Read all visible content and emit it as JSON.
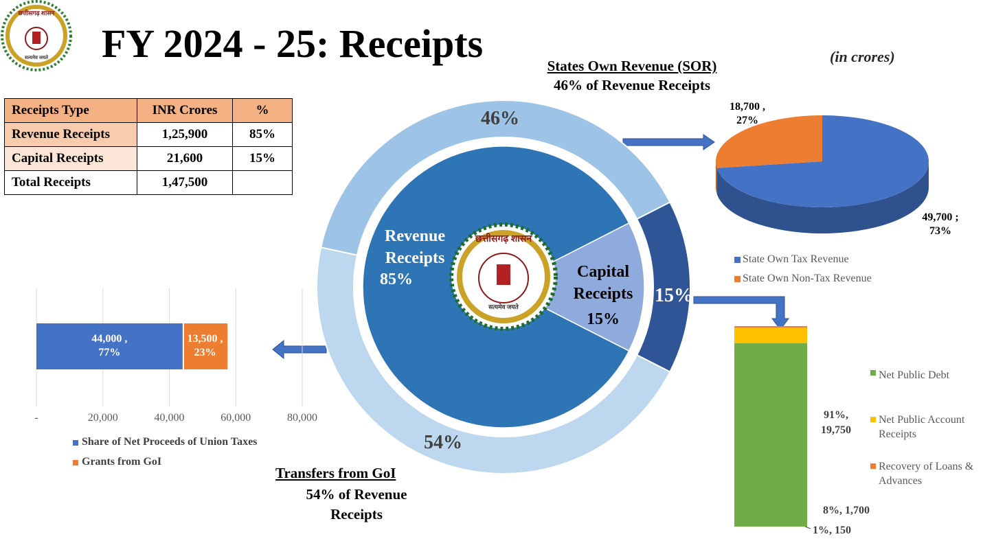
{
  "header": {
    "title": "FY 2024 - 25: Receipts",
    "unit_note": "(in crores)"
  },
  "emblem": {
    "name": "छत्तीसगढ़ शासन",
    "motto": "सत्यमेव जयते"
  },
  "table": {
    "columns": [
      "Receipts Type",
      "INR Crores",
      "%"
    ],
    "rows": [
      [
        "Revenue Receipts",
        "1,25,900",
        "85%"
      ],
      [
        "Capital Receipts",
        "21,600",
        "15%"
      ],
      [
        "Total Receipts",
        "1,47,500"
      ]
    ]
  },
  "annotations": {
    "sor_title": "States Own Revenue (SOR)",
    "sor_note": "46% of Revenue Receipts",
    "goi_title": "Transfers from GoI",
    "goi_note": "54% of Revenue Receipts"
  },
  "chart_data": [
    {
      "type": "pie",
      "categories": [
        "Revenue Receipts",
        "Capital Receipts"
      ],
      "values": [
        85,
        15
      ],
      "value_labels": [
        "85%",
        "15%"
      ],
      "colors": [
        "#2e75b6",
        "#8faadc"
      ],
      "outer_color": "#2f5597"
    },
    {
      "type": "donut",
      "values": [
        46,
        54
      ],
      "value_labels": [
        "46%",
        "54%"
      ],
      "colors": [
        "#9dc3e6",
        "#bdd7ee"
      ]
    },
    {
      "type": "pie",
      "three_d": true,
      "categories": [
        "State Own Tax Revenue",
        "State Own Non-Tax Revenue"
      ],
      "values": [
        49700,
        18700
      ],
      "value_labels": [
        "49,700 ; 73%",
        "18,700 , 27%"
      ],
      "colors": [
        "#4472c4",
        "#ed7d31"
      ],
      "side_colors": [
        "#2f528f",
        "#c55a11"
      ],
      "legend": "bottom"
    },
    {
      "type": "bar",
      "orientation": "horizontal",
      "stacked": true,
      "grid": true,
      "categories": [
        null
      ],
      "series": [
        {
          "name": "Share of Net Proceeds of Union Taxes",
          "color": "#4472c4",
          "values": [
            44000
          ],
          "value_labels": [
            "44,000 , 77%"
          ]
        },
        {
          "name": "Grants from GoI",
          "color": "#ed7d31",
          "values": [
            13500
          ],
          "value_labels": [
            "13,500 , 23%"
          ]
        }
      ],
      "xlim": [
        0,
        80000
      ],
      "xticks": [
        {
          "value": 0,
          "label": "-"
        },
        {
          "value": 20000,
          "label": "20,000"
        },
        {
          "value": 40000,
          "label": "40,000"
        },
        {
          "value": 60000,
          "label": "60,000"
        },
        {
          "value": 80000,
          "label": "80,000"
        }
      ],
      "legend": "bottom"
    },
    {
      "type": "bar",
      "orientation": "vertical",
      "stacked": true,
      "categories": [
        null
      ],
      "series": [
        {
          "name": "Net Public Debt",
          "color": "#70ad47",
          "values": [
            19750
          ],
          "value_labels": [
            "91%, 19,750"
          ]
        },
        {
          "name": "Net Public Account Receipts",
          "color": "#ffc000",
          "values": [
            1700
          ],
          "value_labels": [
            "8%, 1,700"
          ]
        },
        {
          "name": "Recovery of Loans & Advances",
          "color": "#ed7d31",
          "values": [
            150
          ],
          "value_labels": [
            "1%, 150"
          ]
        }
      ],
      "legend": "right"
    }
  ]
}
